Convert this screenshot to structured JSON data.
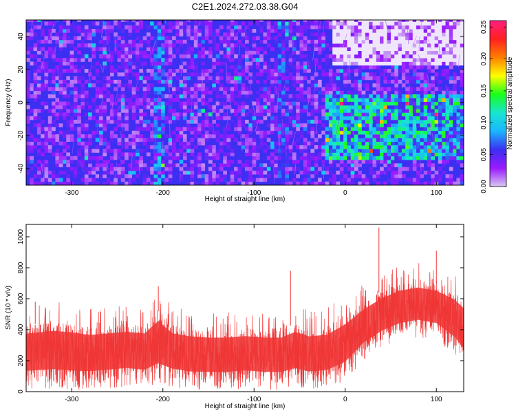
{
  "title": "C2E1.2024.272.03.38.G04",
  "colors": {
    "background": "#ffffff",
    "snr_series": "#f03535",
    "axis": "#000000",
    "spectrogram_base": "#3b2ff2"
  },
  "chart_data": [
    {
      "type": "heatmap",
      "name": "spectrogram",
      "xlabel": "Height of straight line (km)",
      "ylabel": "Frequency (Hz)",
      "xlim": [
        -350,
        130
      ],
      "ylim": [
        -50,
        50
      ],
      "xticks": [
        -300,
        -200,
        -100,
        0,
        100
      ],
      "yticks": [
        -40,
        -20,
        0,
        20,
        40
      ],
      "colorbar": {
        "label": "Normalized spectral amplitude",
        "range": [
          0.0,
          0.26
        ],
        "ticks": [
          "0.00",
          "0.05",
          "0.10",
          "0.15",
          "0.20",
          "0.25"
        ],
        "colormap": [
          "#d8c8f0",
          "#9a1aff",
          "#3b2ff2",
          "#1ab6ff",
          "#17e6d0",
          "#19ff19",
          "#ffff00",
          "#ff8000",
          "#ff2020",
          "#ff2080"
        ]
      },
      "features": [
        {
          "desc": "broadband noise",
          "x_range": [
            -350,
            130
          ],
          "y_range": [
            -50,
            50
          ],
          "level": 0.03
        },
        {
          "desc": "low-amplitude band",
          "x_range": [
            -15,
            130
          ],
          "y_range": [
            22,
            50
          ],
          "level": 0.005
        },
        {
          "desc": "enhanced signal band",
          "x_range": [
            -25,
            130
          ],
          "y_range": [
            -35,
            5
          ],
          "level": 0.09
        },
        {
          "desc": "vertical stripe",
          "x_range": [
            -212,
            -200
          ],
          "y_range": [
            -50,
            50
          ],
          "level": 0.06
        },
        {
          "desc": "vertical stripe",
          "x_range": [
            -75,
            -65
          ],
          "y_range": [
            -50,
            50
          ],
          "level": 0.05
        }
      ]
    },
    {
      "type": "line",
      "name": "snr",
      "xlabel": "Height of straight line (km)",
      "ylabel": "SNR (10 * v/v)",
      "xlim": [
        -350,
        130
      ],
      "ylim": [
        0,
        1080
      ],
      "xticks": [
        -300,
        -200,
        -100,
        0,
        100
      ],
      "yticks": [
        0,
        200,
        400,
        600,
        800,
        1000
      ],
      "envelope": {
        "x": [
          -350,
          -320,
          -300,
          -280,
          -260,
          -240,
          -220,
          -205,
          -190,
          -170,
          -150,
          -130,
          -110,
          -90,
          -70,
          -55,
          -40,
          -20,
          0,
          20,
          40,
          60,
          80,
          100,
          120,
          130
        ],
        "upper": [
          430,
          450,
          440,
          420,
          430,
          440,
          430,
          520,
          430,
          410,
          400,
          400,
          410,
          400,
          400,
          440,
          410,
          420,
          490,
          580,
          650,
          700,
          720,
          700,
          650,
          600
        ],
        "lower": [
          60,
          70,
          60,
          60,
          70,
          80,
          70,
          100,
          80,
          60,
          60,
          60,
          70,
          60,
          60,
          80,
          60,
          70,
          120,
          250,
          330,
          380,
          400,
          380,
          280,
          200
        ]
      },
      "peaks": [
        {
          "x": 37,
          "y": 1060
        },
        {
          "x": 100,
          "y": 910
        },
        {
          "x": -60,
          "y": 780
        },
        {
          "x": -205,
          "y": 680
        },
        {
          "x": -340,
          "y": 580
        }
      ]
    }
  ]
}
